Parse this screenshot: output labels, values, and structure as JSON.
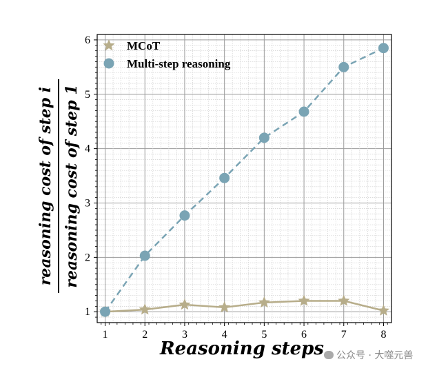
{
  "chart_data": {
    "type": "line",
    "title": "",
    "xlabel": "Reasoning steps",
    "ylabel_numerator": "reasoning cost of step i",
    "ylabel_denominator": "reasoning cost of step 1",
    "x": [
      1,
      2,
      3,
      4,
      5,
      6,
      7,
      8
    ],
    "xlim": [
      0.8,
      8.2
    ],
    "ylim": [
      0.8,
      6.1
    ],
    "xticks": [
      "1",
      "2",
      "3",
      "4",
      "5",
      "6",
      "7",
      "8"
    ],
    "yticks": [
      "1",
      "2",
      "3",
      "4",
      "5",
      "6"
    ],
    "grid": true,
    "legend_position": "top-left",
    "series": [
      {
        "name": "MCoT",
        "values": [
          1.0,
          1.04,
          1.13,
          1.08,
          1.17,
          1.2,
          1.2,
          1.02
        ],
        "color": "#b7ad8a",
        "marker": "star",
        "linestyle": "solid"
      },
      {
        "name": "Multi-step reasoning",
        "values": [
          1.0,
          2.03,
          2.77,
          3.46,
          4.2,
          4.68,
          5.5,
          5.85
        ],
        "color": "#7aa4b4",
        "marker": "circle",
        "linestyle": "dashed"
      }
    ]
  },
  "watermark": "公众号 · 大噬元兽"
}
